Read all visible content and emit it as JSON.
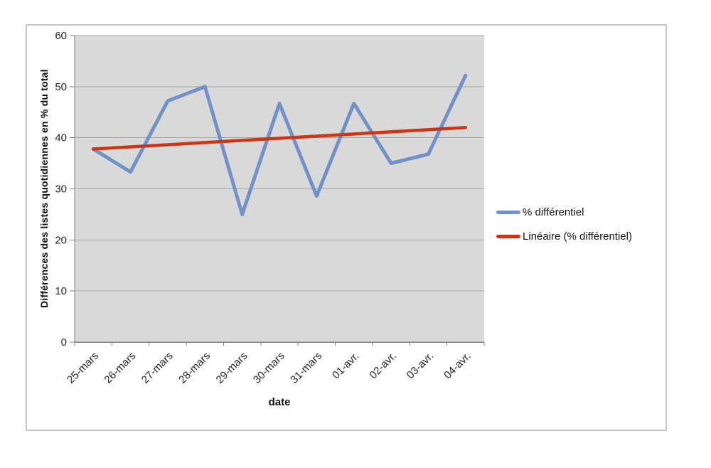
{
  "chart_data": {
    "type": "line",
    "categories": [
      "25-mars",
      "26-mars",
      "27-mars",
      "28-mars",
      "29-mars",
      "30-mars",
      "31-mars",
      "01-avr.",
      "02-avr.",
      "03-avr.",
      "04-avr."
    ],
    "series": [
      {
        "name": "% différentiel",
        "color": "#7291C6",
        "values": [
          37.8,
          33.3,
          47.2,
          50,
          25,
          46.7,
          28.6,
          46.7,
          35,
          36.8,
          52.2
        ]
      },
      {
        "name": "Linéaire (% différentiel)",
        "color": "#CB3617",
        "trendline": true,
        "endpoints": [
          37.8,
          42.0
        ]
      }
    ],
    "xlabel": "date",
    "ylabel": "Différences des listes quotidiennes en % du total",
    "ylim": [
      0,
      60
    ],
    "yticks": [
      0,
      10,
      20,
      30,
      40,
      50,
      60
    ],
    "grid": true,
    "legend_position": "right",
    "plot_bg_color": "#D9D9D9",
    "gridline_color": "#A6A6A6",
    "axis_color": "#808080",
    "tick_label_color": "#262626"
  }
}
